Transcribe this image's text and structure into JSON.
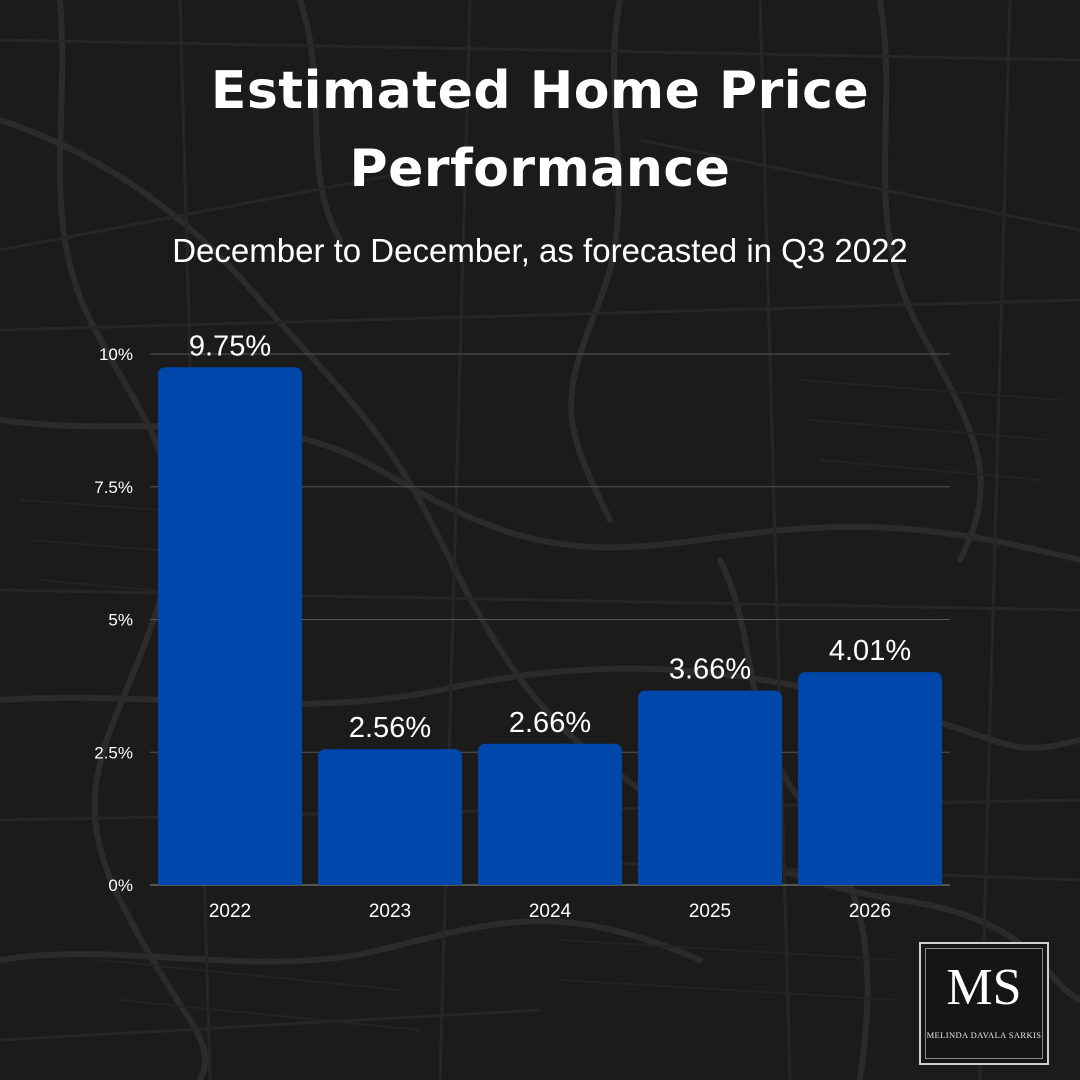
{
  "header": {
    "title_line1": "Estimated Home Price",
    "title_line2": "Performance",
    "subtitle": "December to December, as forecasted in Q3 2022"
  },
  "chart_data": {
    "type": "bar",
    "title": "Estimated Home Price Performance",
    "subtitle": "December to December, as forecasted in Q3 2022",
    "categories": [
      "2022",
      "2023",
      "2024",
      "2025",
      "2026"
    ],
    "values": [
      9.75,
      2.56,
      2.66,
      3.66,
      4.01
    ],
    "data_labels": [
      "9.75%",
      "2.56%",
      "2.66%",
      "3.66%",
      "4.01%"
    ],
    "yticks": [
      0,
      2.5,
      5,
      7.5,
      10
    ],
    "ytick_labels": [
      "0%",
      "2.5%",
      "5%",
      "7.5%",
      "10%"
    ],
    "ylim": [
      0,
      10
    ],
    "xlabel": "",
    "ylabel": "",
    "grid": true,
    "bar_color": "#0047AB"
  },
  "logo": {
    "monogram": "MS",
    "name": "MELINDA DAVALA SARKIS"
  },
  "colors": {
    "background": "#1b1b1b",
    "text": "#ffffff",
    "gridline": "#555555",
    "bar": "#0047AB"
  }
}
